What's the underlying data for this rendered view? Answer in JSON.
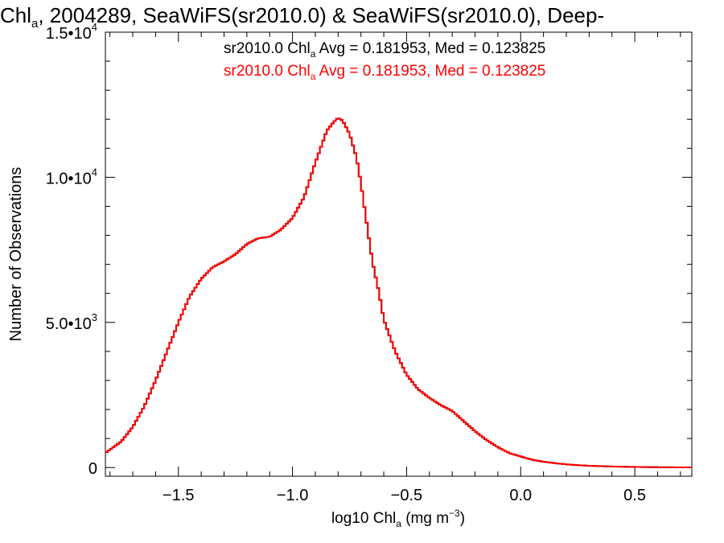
{
  "chart_data": {
    "type": "histogram-step",
    "title": {
      "pre": "Chl",
      "sub": "a",
      "post": ", 2004289, SeaWiFS(sr2010.0) & SeaWiFS(sr2010.0), Deep-"
    },
    "xlabel": {
      "pre": "log10 Chl",
      "sub": "a",
      "mid": " (mg m",
      "sup": "−3",
      "post": ")"
    },
    "ylabel": "Number of Observations",
    "xlim": [
      -1.82,
      0.75
    ],
    "ylim": [
      -300,
      15000
    ],
    "x_ticks": [
      {
        "value": -1.5,
        "label": "−1.5"
      },
      {
        "value": -1.0,
        "label": "−1.0"
      },
      {
        "value": -0.5,
        "label": "−0.5"
      },
      {
        "value": 0.0,
        "label": "0.0"
      },
      {
        "value": 0.5,
        "label": "0.5"
      }
    ],
    "y_ticks": [
      {
        "value": 0,
        "base": "0",
        "exp": ""
      },
      {
        "value": 5000,
        "base": "5.0•10",
        "exp": "3"
      },
      {
        "value": 10000,
        "base": "1.0•10",
        "exp": "4"
      },
      {
        "value": 15000,
        "base": "1.5•10",
        "exp": "4"
      }
    ],
    "legend": [
      {
        "pre": "sr2010.0 Chl",
        "sub": "a",
        "post": " Avg = 0.181953, Med = 0.123825",
        "color": "#000000"
      },
      {
        "pre": "sr2010.0 Chl",
        "sub": "a",
        "post": " Avg = 0.181953, Med = 0.123825",
        "color": "#ff0000"
      }
    ],
    "legend_position": "top-right",
    "series": [
      {
        "color": "#ff0000",
        "x": [
          -1.82,
          -1.75,
          -1.7,
          -1.65,
          -1.6,
          -1.55,
          -1.5,
          -1.45,
          -1.4,
          -1.35,
          -1.3,
          -1.25,
          -1.2,
          -1.15,
          -1.1,
          -1.05,
          -1.0,
          -0.95,
          -0.9,
          -0.85,
          -0.82,
          -0.8,
          -0.78,
          -0.75,
          -0.72,
          -0.7,
          -0.68,
          -0.65,
          -0.62,
          -0.6,
          -0.55,
          -0.5,
          -0.45,
          -0.4,
          -0.35,
          -0.3,
          -0.25,
          -0.2,
          -0.15,
          -0.1,
          -0.05,
          0.0,
          0.05,
          0.1,
          0.15,
          0.2,
          0.25,
          0.3,
          0.4,
          0.5,
          0.6,
          0.7,
          0.75
        ],
        "y": [
          500,
          900,
          1400,
          2100,
          3000,
          4000,
          5000,
          5900,
          6500,
          6900,
          7100,
          7350,
          7700,
          7900,
          7950,
          8200,
          8600,
          9300,
          10500,
          11600,
          11900,
          12050,
          11950,
          11500,
          10700,
          9800,
          8700,
          7100,
          6000,
          5100,
          4000,
          3200,
          2700,
          2400,
          2150,
          1950,
          1600,
          1250,
          950,
          700,
          500,
          380,
          270,
          200,
          150,
          110,
          80,
          60,
          35,
          20,
          10,
          5,
          3
        ]
      },
      {
        "color": "#000000",
        "x": [
          -1.82,
          -1.75,
          -1.7,
          -1.65,
          -1.6,
          -1.55,
          -1.5,
          -1.45,
          -1.4,
          -1.35,
          -1.3,
          -1.25,
          -1.2,
          -1.15,
          -1.1,
          -1.05,
          -1.0,
          -0.95,
          -0.9,
          -0.85,
          -0.82,
          -0.8,
          -0.78,
          -0.75,
          -0.72,
          -0.7,
          -0.68,
          -0.65,
          -0.62,
          -0.6,
          -0.55,
          -0.5,
          -0.45,
          -0.4,
          -0.35,
          -0.3,
          -0.25,
          -0.2,
          -0.15,
          -0.1,
          -0.05,
          0.0,
          0.05,
          0.1,
          0.15,
          0.2,
          0.25,
          0.3,
          0.4,
          0.5,
          0.6,
          0.7,
          0.75
        ],
        "y": [
          500,
          900,
          1400,
          2100,
          3000,
          4000,
          5000,
          5900,
          6500,
          6900,
          7100,
          7350,
          7700,
          7900,
          7950,
          8200,
          8600,
          9300,
          10500,
          11600,
          11900,
          12050,
          11950,
          11500,
          10700,
          9800,
          8700,
          7100,
          6000,
          5100,
          4000,
          3200,
          2700,
          2400,
          2150,
          1950,
          1600,
          1250,
          950,
          700,
          500,
          380,
          270,
          200,
          150,
          110,
          80,
          60,
          35,
          20,
          10,
          5,
          3
        ]
      }
    ]
  }
}
